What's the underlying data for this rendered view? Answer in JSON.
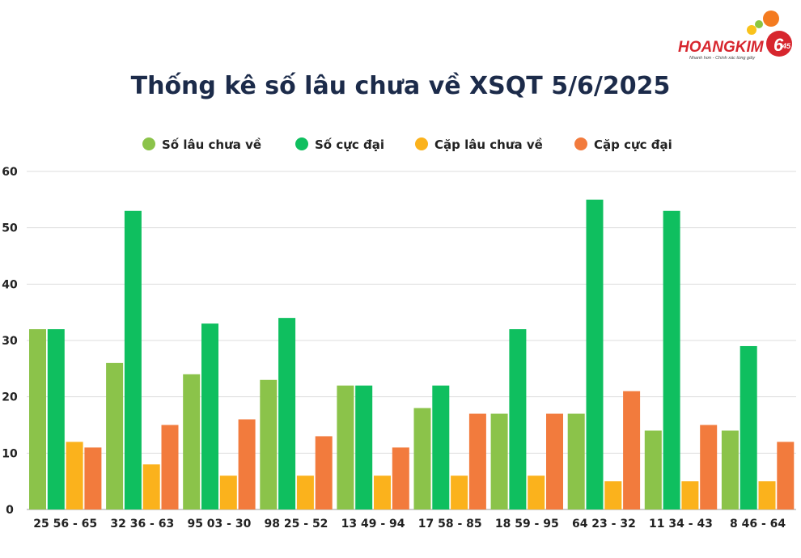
{
  "logo": {
    "brand": "HOANGKIM",
    "badge": "6",
    "badge_small": "45",
    "tagline": "Nhanh hơn - Chính xác từng giây"
  },
  "colors": {
    "title": "#1c2b4a",
    "axis_text": "#222222",
    "grid": "#dddddd",
    "brand_red": "#d7262e",
    "brand_orange": "#f47b20",
    "brand_yellow": "#f9c21b",
    "brand_green": "#8cc63f"
  },
  "chart_data": {
    "type": "bar",
    "title": "Thống kê số lâu chưa về XSQT 5/6/2025",
    "xlabel": "",
    "ylabel": "",
    "ylim": [
      0,
      60
    ],
    "yticks": [
      0,
      10,
      20,
      30,
      40,
      50,
      60
    ],
    "grid": true,
    "legend_position": "top-center",
    "categories": [
      "25 56 - 65",
      "32 36 - 63",
      "95 03 - 30",
      "98 25 - 52",
      "13 49 - 94",
      "17 58 - 85",
      "18 59 - 95",
      "64 23 - 32",
      "11 34 - 43",
      "8 46 - 64"
    ],
    "series": [
      {
        "name": "Số lâu chưa về",
        "color": "#8bc34a",
        "values": [
          32,
          26,
          24,
          23,
          22,
          18,
          17,
          17,
          14,
          14
        ]
      },
      {
        "name": "Số cực đại",
        "color": "#0fbf5f",
        "values": [
          32,
          53,
          33,
          34,
          22,
          22,
          32,
          55,
          53,
          29
        ]
      },
      {
        "name": "Cặp lâu chưa về",
        "color": "#fbb21c",
        "values": [
          12,
          8,
          6,
          6,
          6,
          6,
          6,
          5,
          5,
          5
        ]
      },
      {
        "name": "Cặp cực đại",
        "color": "#f27b3d",
        "values": [
          11,
          15,
          16,
          13,
          11,
          17,
          17,
          21,
          15,
          12
        ]
      }
    ]
  }
}
